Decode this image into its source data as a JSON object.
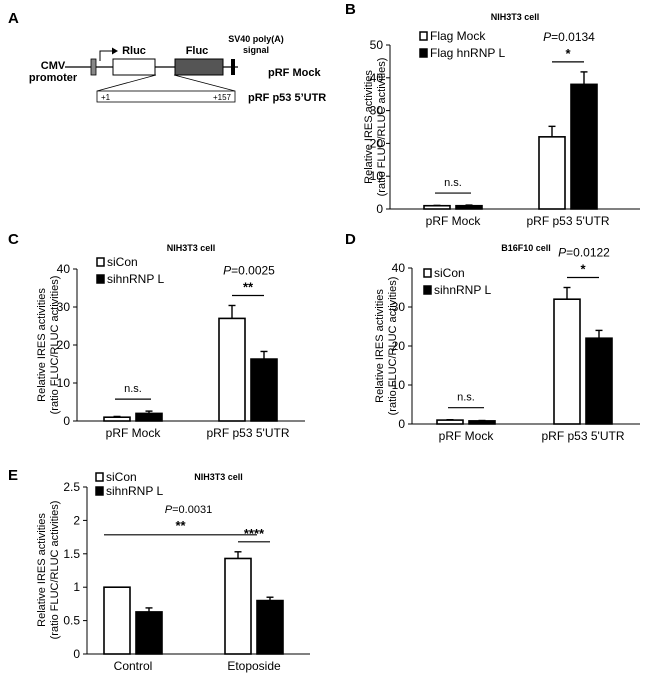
{
  "panels": [
    {
      "letter": "A"
    },
    {
      "letter": "B"
    },
    {
      "letter": "C"
    },
    {
      "letter": "D"
    },
    {
      "letter": "E"
    }
  ],
  "construct": {
    "cmv": [
      "CMV",
      "promoter"
    ],
    "rluc": "Rluc",
    "fluc": "Fluc",
    "sv40": [
      "SV40 poly(A)",
      "signal"
    ],
    "mock_name": "pRF Mock",
    "utr_name": "pRF p53 5’UTR",
    "utr_start": "+1",
    "utr_end": "+157",
    "colors": {
      "fluc_fill": "#555555",
      "signal_fill": "#000000"
    }
  },
  "chart_data": [
    {
      "id": "B",
      "type": "bar",
      "title": "NIH3T3 cell",
      "ylabel": [
        "Relative IRES activities",
        "(ratio FLUC/RLUC activities)"
      ],
      "categories": [
        "pRF Mock",
        "pRF p53 5'UTR"
      ],
      "ylim": [
        0,
        50
      ],
      "yticks": [
        "0",
        "10",
        "20",
        "30",
        "40",
        "50"
      ],
      "series": [
        {
          "name": "Flag Mock",
          "fill": "#ffffff",
          "values": [
            1.0,
            22.0
          ],
          "errors": [
            0.1,
            3.2
          ]
        },
        {
          "name": "Flag hnRNP L",
          "fill": "#000000",
          "values": [
            1.0,
            38.0
          ],
          "errors": [
            0.2,
            3.8
          ]
        }
      ],
      "annotations": [
        {
          "category": 0,
          "star": "n.s.",
          "p": null
        },
        {
          "category": 1,
          "star": "*",
          "p": "P=0.0134"
        }
      ]
    },
    {
      "id": "C",
      "type": "bar",
      "title": "NIH3T3 cell",
      "ylabel": [
        "Relative IRES activities",
        "(ratio FLUC/RLUC activities)"
      ],
      "categories": [
        "pRF Mock",
        "pRF p53 5'UTR"
      ],
      "ylim": [
        0,
        40
      ],
      "yticks": [
        "0",
        "10",
        "20",
        "30",
        "40"
      ],
      "series": [
        {
          "name": "siCon",
          "fill": "#ffffff",
          "values": [
            1.0,
            27.0
          ],
          "errors": [
            0.2,
            3.4
          ]
        },
        {
          "name": "sihnRNP L",
          "fill": "#000000",
          "values": [
            2.0,
            16.3
          ],
          "errors": [
            0.6,
            2.0
          ]
        }
      ],
      "annotations": [
        {
          "category": 0,
          "star": "n.s.",
          "p": null
        },
        {
          "category": 1,
          "star": "**",
          "p": "P=0.0025"
        }
      ]
    },
    {
      "id": "D",
      "type": "bar",
      "title": "B16F10 cell",
      "ylabel": [
        "Relative IRES activities",
        "(ratio FLUC/RLUC activities)"
      ],
      "categories": [
        "pRF Mock",
        "pRF p53 5'UTR"
      ],
      "ylim": [
        0,
        40
      ],
      "yticks": [
        "0",
        "10",
        "20",
        "30",
        "40"
      ],
      "series": [
        {
          "name": "siCon",
          "fill": "#ffffff",
          "values": [
            1.0,
            32.0
          ],
          "errors": [
            0.1,
            3.0
          ]
        },
        {
          "name": "sihnRNP L",
          "fill": "#000000",
          "values": [
            0.8,
            22.0
          ],
          "errors": [
            0.1,
            2.0
          ]
        }
      ],
      "annotations": [
        {
          "category": 0,
          "star": "n.s.",
          "p": null
        },
        {
          "category": 1,
          "star": "*",
          "p": "P=0.0122"
        }
      ]
    },
    {
      "id": "E",
      "type": "bar",
      "title": "NIH3T3 cell",
      "ylabel": [
        "Relative IRES activities",
        "(ratio FLUC/RLUC activities)"
      ],
      "categories": [
        "Control",
        "Etoposide"
      ],
      "ylim": [
        0,
        2.5
      ],
      "yticks": [
        "0",
        "0.5",
        "1",
        "1.5",
        "2",
        "2.5"
      ],
      "series": [
        {
          "name": "siCon",
          "fill": "#ffffff",
          "values": [
            1.0,
            1.43
          ],
          "errors": [
            0.0,
            0.1
          ]
        },
        {
          "name": "sihnRNP L",
          "fill": "#000000",
          "values": [
            0.63,
            0.8
          ],
          "errors": [
            0.06,
            0.05
          ]
        }
      ],
      "annotations": [
        {
          "category": 1,
          "star": "****",
          "p": null
        },
        {
          "between": [
            0,
            1
          ],
          "star": "**",
          "p": "P=0.0031"
        }
      ]
    }
  ]
}
